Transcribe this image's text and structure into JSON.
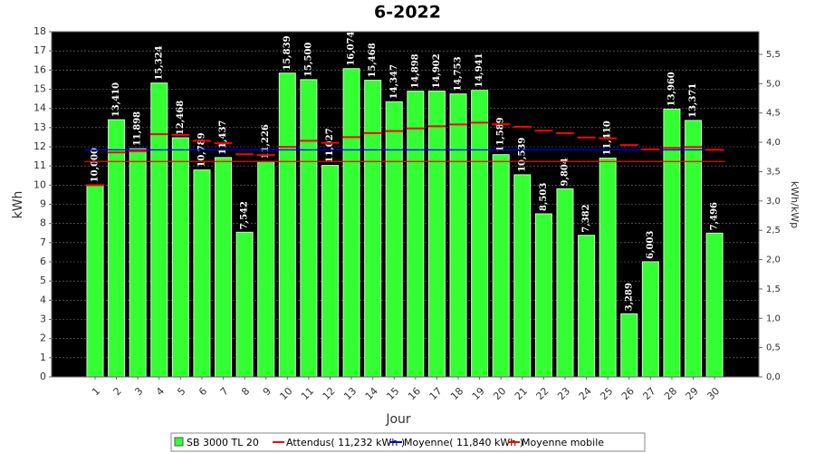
{
  "chart_data": {
    "type": "bar",
    "title": "6-2022",
    "xlabel": "Jour",
    "ylabel": "kWh",
    "y2label": "kWh/kWp",
    "categories": [
      "1",
      "2",
      "3",
      "4",
      "5",
      "6",
      "7",
      "8",
      "9",
      "10",
      "11",
      "12",
      "13",
      "14",
      "15",
      "16",
      "17",
      "18",
      "19",
      "20",
      "21",
      "22",
      "23",
      "24",
      "25",
      "26",
      "27",
      "28",
      "29",
      "30"
    ],
    "series": [
      {
        "name": "SB 3000 TL 20",
        "color": "#33ff33",
        "kind": "bar",
        "values": [
          10.0,
          13.41,
          11.898,
          15.324,
          12.468,
          10.789,
          11.437,
          7.542,
          11.226,
          15.839,
          15.5,
          11.027,
          16.074,
          15.468,
          14.347,
          14.898,
          14.902,
          14.753,
          14.941,
          11.589,
          10.539,
          8.503,
          9.804,
          7.382,
          11.41,
          3.289,
          6.003,
          13.96,
          13.371,
          7.496
        ],
        "value_labels": [
          "10,000",
          "13,410",
          "11,898",
          "15,324",
          "12,468",
          "10,789",
          "11,437",
          "7,542",
          "11,226",
          "15,839",
          "15,500",
          "11,027",
          "16,074",
          "15,468",
          "14,347",
          "14,898",
          "14,902",
          "14,753",
          "14,941",
          "11,589",
          "10,539",
          "8,503",
          "9,804",
          "7,382",
          "11,410",
          "3,289",
          "6,003",
          "13,960",
          "13,371",
          "7,496"
        ]
      },
      {
        "name": "Attendus( 11,232 kWh )",
        "color": "#ff0000",
        "kind": "hline",
        "value": 11.232
      },
      {
        "name": "Moyenne( 11,840 kWh )",
        "color": "#0000ff",
        "kind": "hline",
        "value": 11.84
      },
      {
        "name": "Moyenne mobile",
        "color": "#ff0000",
        "kind": "dash",
        "values": [
          10.0,
          11.705,
          11.769,
          12.658,
          12.62,
          12.315,
          12.19,
          11.609,
          11.566,
          11.993,
          12.312,
          12.205,
          12.502,
          12.714,
          12.823,
          12.955,
          13.069,
          13.163,
          13.257,
          13.173,
          13.048,
          12.841,
          12.709,
          12.486,
          12.443,
          12.09,
          11.865,
          11.94,
          11.989,
          11.84
        ]
      }
    ],
    "ylim": [
      0,
      18
    ],
    "yticks": [
      0,
      1,
      2,
      3,
      4,
      5,
      6,
      7,
      8,
      9,
      10,
      11,
      12,
      13,
      14,
      15,
      16,
      17,
      18
    ],
    "y2lim": [
      0,
      5.886
    ],
    "y2ticks": [
      {
        "value": 0,
        "label": "0,0"
      },
      {
        "value": 0.5,
        "label": "0,5"
      },
      {
        "value": 1,
        "label": "1,0"
      },
      {
        "value": 1.5,
        "label": "1,5"
      },
      {
        "value": 2,
        "label": "2,0"
      },
      {
        "value": 2.5,
        "label": "2,5"
      },
      {
        "value": 3,
        "label": "3,0"
      },
      {
        "value": 3.5,
        "label": "3,5"
      },
      {
        "value": 4,
        "label": "4,0"
      },
      {
        "value": 4.5,
        "label": "4,5"
      },
      {
        "value": 5,
        "label": "5,0"
      },
      {
        "value": 5.5,
        "label": "5,5"
      }
    ],
    "grid": true
  }
}
